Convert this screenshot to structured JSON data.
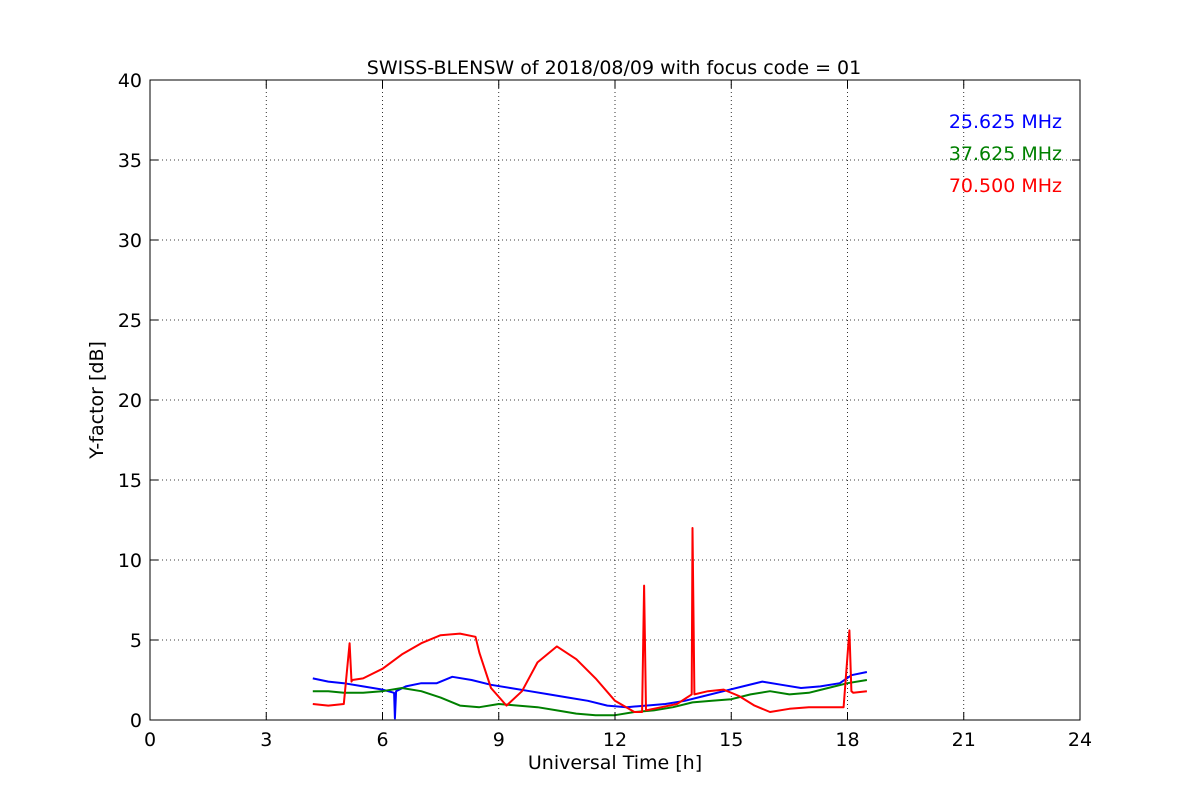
{
  "chart_data": {
    "type": "line",
    "title": "SWISS-BLENSW of 2018/08/09 with focus code = 01",
    "xlabel": "Universal Time [h]",
    "ylabel": "Y-factor [dB]",
    "xlim": [
      0,
      24
    ],
    "ylim": [
      0,
      40
    ],
    "xticks": [
      "0",
      "3",
      "6",
      "9",
      "12",
      "15",
      "18",
      "21",
      "24"
    ],
    "yticks": [
      "0",
      "5",
      "10",
      "15",
      "20",
      "25",
      "30",
      "35",
      "40"
    ],
    "grid": true,
    "legend_position": "top-right",
    "series": [
      {
        "name": "25.625 MHz",
        "color": "#0000ff",
        "x": [
          4.2,
          4.6,
          5.0,
          5.5,
          6.0,
          6.3,
          6.32,
          6.35,
          6.6,
          7.0,
          7.4,
          7.8,
          8.3,
          8.8,
          9.3,
          9.8,
          10.3,
          10.8,
          11.3,
          11.8,
          12.3,
          12.8,
          13.3,
          13.8,
          14.3,
          14.8,
          15.3,
          15.8,
          16.3,
          16.8,
          17.3,
          17.8,
          18.1,
          18.5
        ],
        "y": [
          2.6,
          2.4,
          2.3,
          2.1,
          1.9,
          1.7,
          0.1,
          1.8,
          2.1,
          2.3,
          2.3,
          2.7,
          2.5,
          2.2,
          2.0,
          1.8,
          1.6,
          1.4,
          1.2,
          0.9,
          0.8,
          0.9,
          1.0,
          1.2,
          1.5,
          1.8,
          2.1,
          2.4,
          2.2,
          2.0,
          2.1,
          2.3,
          2.8,
          3.0
        ]
      },
      {
        "name": "37.625 MHz",
        "color": "#008000",
        "x": [
          4.2,
          4.6,
          5.0,
          5.5,
          6.0,
          6.5,
          7.0,
          7.5,
          8.0,
          8.5,
          9.0,
          9.5,
          10.0,
          10.5,
          11.0,
          11.5,
          12.0,
          12.5,
          13.0,
          13.5,
          14.0,
          14.5,
          15.0,
          15.5,
          16.0,
          16.5,
          17.0,
          17.5,
          18.0,
          18.5
        ],
        "y": [
          1.8,
          1.8,
          1.7,
          1.7,
          1.8,
          2.0,
          1.8,
          1.4,
          0.9,
          0.8,
          1.0,
          0.9,
          0.8,
          0.6,
          0.4,
          0.3,
          0.3,
          0.5,
          0.6,
          0.8,
          1.1,
          1.2,
          1.3,
          1.6,
          1.8,
          1.6,
          1.7,
          2.0,
          2.3,
          2.5
        ]
      },
      {
        "name": "70.500 MHz",
        "color": "#ff0000",
        "x": [
          4.2,
          4.6,
          5.0,
          5.15,
          5.2,
          5.22,
          5.5,
          6.0,
          6.5,
          7.0,
          7.5,
          8.0,
          8.4,
          8.5,
          8.8,
          9.2,
          9.6,
          10.0,
          10.5,
          11.0,
          11.5,
          12.0,
          12.5,
          12.7,
          12.75,
          12.8,
          13.2,
          13.6,
          13.98,
          14.0,
          14.05,
          14.4,
          14.8,
          15.2,
          15.6,
          16.0,
          16.5,
          17.0,
          17.5,
          17.9,
          18.05,
          18.1,
          18.15,
          18.5
        ],
        "y": [
          1.0,
          0.9,
          1.0,
          4.8,
          2.4,
          2.5,
          2.6,
          3.2,
          4.1,
          4.8,
          5.3,
          5.4,
          5.2,
          4.2,
          2.0,
          0.9,
          1.8,
          3.6,
          4.6,
          3.8,
          2.6,
          1.2,
          0.5,
          0.5,
          8.4,
          0.6,
          0.8,
          1.0,
          1.6,
          12.0,
          1.6,
          1.8,
          1.9,
          1.5,
          0.9,
          0.5,
          0.7,
          0.8,
          0.8,
          0.8,
          5.6,
          1.8,
          1.7,
          1.8
        ]
      }
    ]
  }
}
